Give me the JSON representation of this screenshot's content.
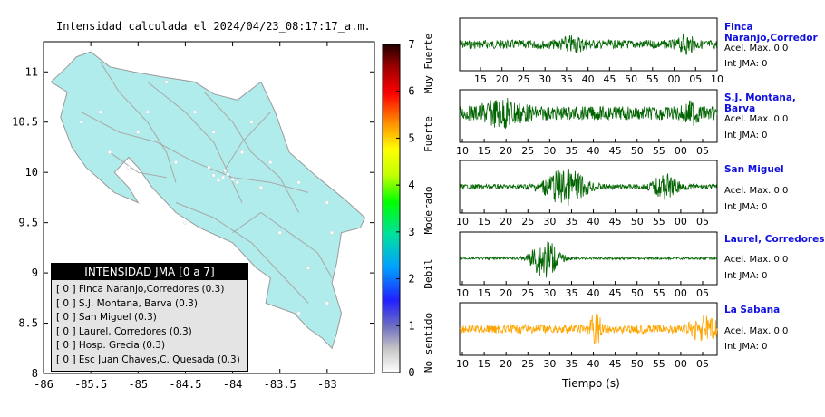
{
  "map": {
    "title": "Intensidad calculada el 2024/04/23_08:17:17_a.m.",
    "lon_ticks": [
      "-86",
      "-85.5",
      "-85",
      "-84.5",
      "-84",
      "-83.5",
      "-83"
    ],
    "lat_ticks": [
      "11",
      "10.5",
      "10",
      "9.5",
      "9",
      "8.5",
      "8"
    ],
    "land_color": "#b0eceb",
    "sea_color": "#ffffff"
  },
  "legend": {
    "title": "INTENSIDAD JMA [0 a 7]",
    "items": [
      "[ 0 ]  Finca Naranjo,Corredores (0.3)",
      "[ 0 ]  S.J. Montana, Barva (0.3)",
      "[ 0 ]  San Miguel (0.3)",
      "[ 0 ]  Laurel, Corredores (0.3)",
      "[ 0 ]  Hosp. Grecia (0.3)",
      "[ 0 ]  Esc Juan Chaves,C. Quesada (0.3)"
    ]
  },
  "colorbar": {
    "ticks": [
      "0",
      "1",
      "2",
      "3",
      "4",
      "5",
      "6",
      "7"
    ],
    "labels": [
      "No sentido",
      "Debil",
      "Moderado",
      "Fuerte",
      "Muy Fuerte"
    ]
  },
  "seismograms": {
    "xlabel": "Tiempo (s)",
    "panels": [
      {
        "name": "Finca Naranjo,Corredor",
        "acel": "Acel. Max. 0.0",
        "int": "Int JMA: 0",
        "color": "#006400",
        "ticks": [
          "15",
          "20",
          "25",
          "30",
          "35",
          "40",
          "45",
          "50",
          "55",
          "00",
          "05",
          "10"
        ],
        "bursts": [
          [
            0.44,
            0.22,
            0.05
          ],
          [
            0.88,
            0.28,
            0.03
          ]
        ],
        "base": 0.18
      },
      {
        "name": "S.J. Montana, Barva",
        "acel": "Acel. Max. 0.0",
        "int": "Int JMA: 0",
        "color": "#006400",
        "ticks": [
          "10",
          "15",
          "20",
          "25",
          "30",
          "35",
          "40",
          "45",
          "50",
          "55",
          "00",
          "05"
        ],
        "bursts": [
          [
            0.17,
            0.4,
            0.08
          ],
          [
            0.9,
            0.28,
            0.03
          ]
        ],
        "base": 0.28
      },
      {
        "name": "San Miguel",
        "acel": "Acel. Max. 0.0",
        "int": "Int JMA: 0",
        "color": "#006400",
        "ticks": [
          "10",
          "15",
          "20",
          "25",
          "30",
          "35",
          "40",
          "45",
          "50",
          "55",
          "00",
          "05"
        ],
        "bursts": [
          [
            0.41,
            0.7,
            0.08
          ],
          [
            0.8,
            0.45,
            0.05
          ]
        ],
        "base": 0.1
      },
      {
        "name": "Laurel, Corredores",
        "acel": "Acel. Max. 0.0",
        "int": "Int JMA: 0",
        "color": "#006400",
        "ticks": [
          "10",
          "15",
          "20",
          "25",
          "30",
          "35",
          "40",
          "45",
          "50",
          "55",
          "00",
          "05"
        ],
        "bursts": [
          [
            0.33,
            0.85,
            0.05
          ]
        ],
        "base": 0.05
      },
      {
        "name": "La Sabana",
        "acel": "Acel. Max. 0.0",
        "int": "Int JMA: 0",
        "color": "#ffa500",
        "ticks": [
          "10",
          "15",
          "20",
          "25",
          "30",
          "35",
          "40",
          "45",
          "50",
          "55",
          "00",
          "05"
        ],
        "bursts": [
          [
            0.53,
            0.75,
            0.02
          ],
          [
            0.95,
            0.45,
            0.05
          ]
        ],
        "base": 0.18
      }
    ]
  }
}
